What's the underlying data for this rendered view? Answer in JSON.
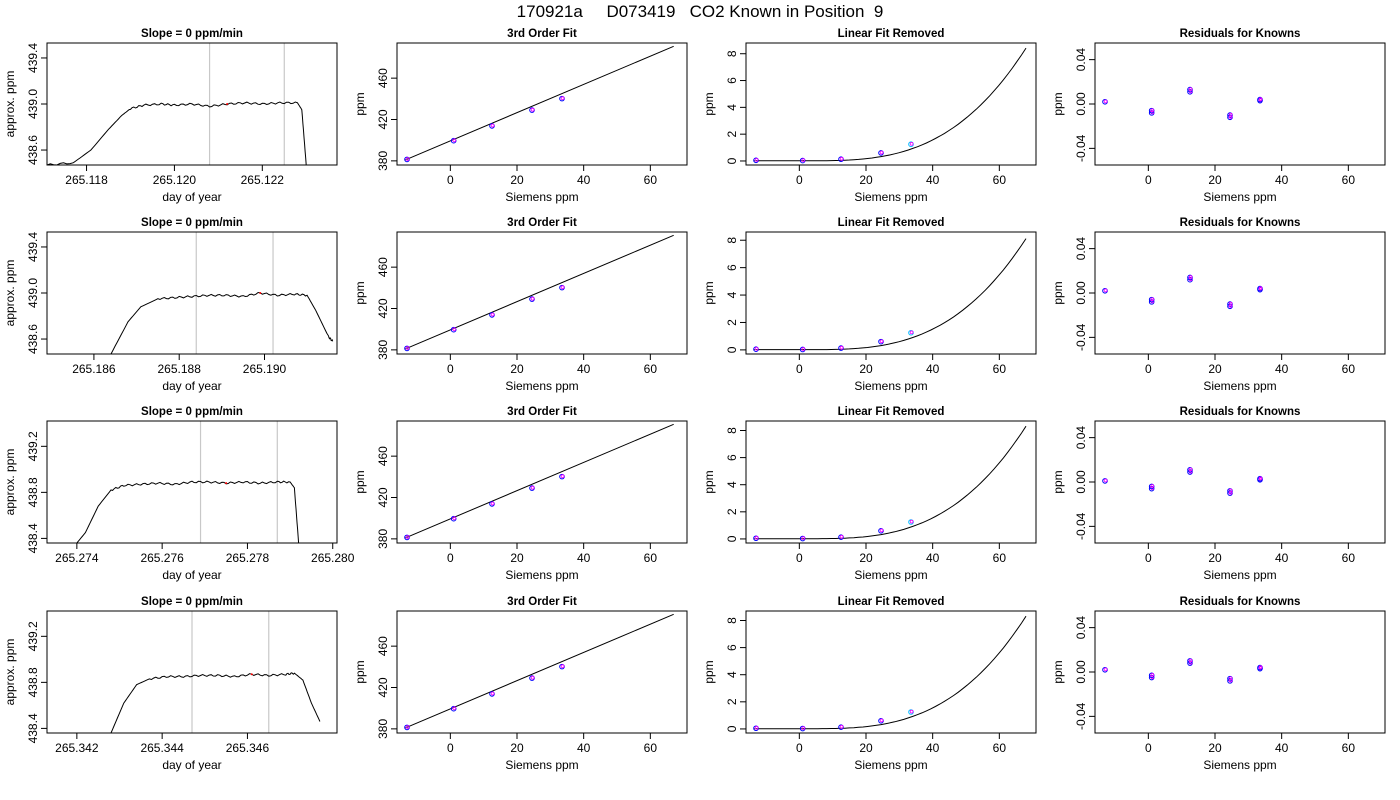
{
  "figure": {
    "title": "170921a     D073419   CO2 Known in Position  9",
    "colors": {
      "line": "#000000",
      "frame": "#000000",
      "vline": "#c8c8c8",
      "point_a": "#0000ff",
      "point_b": "#ff00ff",
      "point_c": "#00bfff",
      "trace_dot": "#ff0000"
    }
  },
  "chart_data": [
    {
      "type": "line",
      "title": "Slope =  0  ppm/min",
      "xlabel": "day of year",
      "ylabel": "approx. ppm",
      "xlim": [
        265.1171,
        265.1237
      ],
      "ylim": [
        438.47,
        439.53
      ],
      "xticks": [
        265.118,
        265.12,
        265.122
      ],
      "xtick_labels": [
        "265.118",
        "265.120",
        "265.122"
      ],
      "yticks": [
        438.6,
        439.0,
        439.4
      ],
      "ytick_labels": [
        "438.6",
        "439.0",
        "439.4"
      ],
      "vlines": [
        265.1208,
        265.1225
      ],
      "trace": [
        [
          265.1171,
          438.47
        ],
        [
          265.1177,
          438.49
        ],
        [
          265.1181,
          438.6
        ],
        [
          265.1185,
          438.78
        ],
        [
          265.1188,
          438.9
        ],
        [
          265.119,
          438.96
        ],
        [
          265.1193,
          438.99
        ],
        [
          265.1197,
          439.0
        ],
        [
          265.12,
          438.99
        ],
        [
          265.1204,
          439.0
        ],
        [
          265.1208,
          438.98
        ],
        [
          265.1212,
          439.0
        ],
        [
          265.1216,
          439.01
        ],
        [
          265.122,
          439.0
        ],
        [
          265.1224,
          439.01
        ],
        [
          265.1228,
          439.01
        ],
        [
          265.1229,
          438.95
        ],
        [
          265.123,
          438.47
        ]
      ]
    },
    {
      "type": "scatter",
      "title": "3rd Order Fit",
      "xlabel": "Siemens ppm",
      "ylabel": "ppm",
      "xlim": [
        -16,
        71
      ],
      "ylim": [
        376,
        494
      ],
      "xticks": [
        0,
        20,
        40,
        60
      ],
      "xtick_labels": [
        "0",
        "20",
        "40",
        "60"
      ],
      "yticks": [
        380,
        420,
        460
      ],
      "ytick_labels": [
        "380",
        "420",
        "460"
      ],
      "points": [
        [
          -13,
          381.4
        ],
        [
          1,
          399.5
        ],
        [
          12.5,
          413.8
        ],
        [
          24.5,
          429.1
        ],
        [
          33.5,
          440.2
        ]
      ],
      "curve": [
        [
          -13.5,
          380.9
        ],
        [
          67,
          490.8
        ]
      ]
    },
    {
      "type": "scatter",
      "title": "Linear Fit Removed",
      "xlabel": "Siemens ppm",
      "ylabel": "ppm",
      "xlim": [
        -16,
        71
      ],
      "ylim": [
        -0.3,
        8.8
      ],
      "xticks": [
        0,
        20,
        40,
        60
      ],
      "xtick_labels": [
        "0",
        "20",
        "40",
        "60"
      ],
      "yticks": [
        0,
        2,
        4,
        6,
        8
      ],
      "ytick_labels": [
        "0",
        "2",
        "4",
        "6",
        "8"
      ],
      "points": [
        [
          -13,
          0.05
        ],
        [
          1,
          0.03
        ],
        [
          12.5,
          0.13
        ],
        [
          24.5,
          0.6
        ],
        [
          33.5,
          1.25
        ]
      ],
      "curve_kind": "cubic",
      "curve_range": [
        -13.5,
        68
      ],
      "curve_end": 8.4
    },
    {
      "type": "scatter",
      "title": "Residuals for Knowns",
      "xlabel": "Siemens ppm",
      "ylabel": "ppm",
      "xlim": [
        -16,
        71
      ],
      "ylim": [
        -0.055,
        0.055
      ],
      "xticks": [
        0,
        20,
        40,
        60
      ],
      "xtick_labels": [
        "0",
        "20",
        "40",
        "60"
      ],
      "yticks": [
        -0.04,
        0.0,
        0.04
      ],
      "ytick_labels": [
        "-0.04",
        "0.00",
        "0.04"
      ],
      "points": [
        [
          -13,
          0.002
        ],
        [
          1,
          -0.008
        ],
        [
          1,
          -0.006
        ],
        [
          12.5,
          0.011
        ],
        [
          12.5,
          0.013
        ],
        [
          24.5,
          -0.01
        ],
        [
          24.5,
          -0.012
        ],
        [
          33.5,
          0.003
        ],
        [
          33.5,
          0.004
        ]
      ]
    },
    {
      "type": "line",
      "title": "Slope =  0  ppm/min",
      "xlabel": "day of year",
      "ylabel": "approx. ppm",
      "xlim": [
        265.1849,
        265.1917
      ],
      "ylim": [
        438.47,
        439.53
      ],
      "xticks": [
        265.186,
        265.188,
        265.19
      ],
      "xtick_labels": [
        "265.186",
        "265.188",
        "265.190"
      ],
      "yticks": [
        438.6,
        439.0,
        439.4
      ],
      "ytick_labels": [
        "438.6",
        "439.0",
        "439.4"
      ],
      "vlines": [
        265.1884,
        265.1902
      ],
      "trace": [
        [
          265.1864,
          438.47
        ],
        [
          265.1868,
          438.75
        ],
        [
          265.1871,
          438.88
        ],
        [
          265.1875,
          438.95
        ],
        [
          265.1879,
          438.96
        ],
        [
          265.1883,
          438.97
        ],
        [
          265.1887,
          438.98
        ],
        [
          265.1891,
          438.98
        ],
        [
          265.1895,
          438.97
        ],
        [
          265.1899,
          439.0
        ],
        [
          265.1903,
          438.98
        ],
        [
          265.1907,
          438.99
        ],
        [
          265.191,
          438.98
        ],
        [
          265.1912,
          438.85
        ],
        [
          265.1915,
          438.62
        ],
        [
          265.1916,
          438.58
        ]
      ]
    },
    {
      "type": "scatter",
      "title": "3rd Order Fit",
      "xlabel": "Siemens ppm",
      "ylabel": "ppm",
      "xlim": [
        -16,
        71
      ],
      "ylim": [
        376,
        494
      ],
      "xticks": [
        0,
        20,
        40,
        60
      ],
      "xtick_labels": [
        "0",
        "20",
        "40",
        "60"
      ],
      "yticks": [
        380,
        420,
        460
      ],
      "ytick_labels": [
        "380",
        "420",
        "460"
      ],
      "points": [
        [
          -13,
          381.4
        ],
        [
          1,
          399.5
        ],
        [
          12.5,
          413.8
        ],
        [
          24.5,
          429.1
        ],
        [
          33.5,
          440.2
        ]
      ],
      "curve": [
        [
          -13.5,
          380.9
        ],
        [
          67,
          490.8
        ]
      ]
    },
    {
      "type": "scatter",
      "title": "Linear Fit Removed",
      "xlabel": "Siemens ppm",
      "ylabel": "ppm",
      "xlim": [
        -16,
        71
      ],
      "ylim": [
        -0.3,
        8.6
      ],
      "xticks": [
        0,
        20,
        40,
        60
      ],
      "xtick_labels": [
        "0",
        "20",
        "40",
        "60"
      ],
      "yticks": [
        0,
        2,
        4,
        6,
        8
      ],
      "ytick_labels": [
        "0",
        "2",
        "4",
        "6",
        "8"
      ],
      "points": [
        [
          -13,
          0.05
        ],
        [
          1,
          0.03
        ],
        [
          12.5,
          0.13
        ],
        [
          24.5,
          0.6
        ],
        [
          33.5,
          1.25
        ]
      ],
      "curve_kind": "cubic",
      "curve_range": [
        -13.5,
        68
      ],
      "curve_end": 8.1
    },
    {
      "type": "scatter",
      "title": "Residuals for Knowns",
      "xlabel": "Siemens ppm",
      "ylabel": "ppm",
      "xlim": [
        -16,
        71
      ],
      "ylim": [
        -0.055,
        0.055
      ],
      "xticks": [
        0,
        20,
        40,
        60
      ],
      "xtick_labels": [
        "0",
        "20",
        "40",
        "60"
      ],
      "yticks": [
        -0.04,
        0.0,
        0.04
      ],
      "ytick_labels": [
        "-0.04",
        "0.00",
        "0.04"
      ],
      "points": [
        [
          -13,
          0.002
        ],
        [
          1,
          -0.008
        ],
        [
          1,
          -0.006
        ],
        [
          12.5,
          0.012
        ],
        [
          12.5,
          0.014
        ],
        [
          24.5,
          -0.01
        ],
        [
          24.5,
          -0.012
        ],
        [
          33.5,
          0.003
        ],
        [
          33.5,
          0.004
        ]
      ]
    },
    {
      "type": "line",
      "title": "Slope =  0  ppm/min",
      "xlabel": "day of year",
      "ylabel": "approx. ppm",
      "xlim": [
        265.2733,
        265.2801
      ],
      "ylim": [
        438.36,
        439.42
      ],
      "xticks": [
        265.274,
        265.276,
        265.278,
        265.28
      ],
      "xtick_labels": [
        "265.274",
        "265.276",
        "265.278",
        "265.280"
      ],
      "yticks": [
        438.4,
        438.8,
        439.2
      ],
      "ytick_labels": [
        "438.4",
        "438.8",
        "439.2"
      ],
      "vlines": [
        265.2769,
        265.2787
      ],
      "trace": [
        [
          265.274,
          438.36
        ],
        [
          265.2742,
          438.45
        ],
        [
          265.2745,
          438.68
        ],
        [
          265.2748,
          438.82
        ],
        [
          265.2751,
          438.86
        ],
        [
          265.2755,
          438.87
        ],
        [
          265.2759,
          438.88
        ],
        [
          265.2763,
          438.87
        ],
        [
          265.2767,
          438.89
        ],
        [
          265.2771,
          438.89
        ],
        [
          265.2775,
          438.88
        ],
        [
          265.2779,
          438.89
        ],
        [
          265.2783,
          438.88
        ],
        [
          265.2787,
          438.89
        ],
        [
          265.279,
          438.89
        ],
        [
          265.2791,
          438.84
        ],
        [
          265.2792,
          438.36
        ]
      ]
    },
    {
      "type": "scatter",
      "title": "3rd Order Fit",
      "xlabel": "Siemens ppm",
      "ylabel": "ppm",
      "xlim": [
        -16,
        71
      ],
      "ylim": [
        376,
        494
      ],
      "xticks": [
        0,
        20,
        40,
        60
      ],
      "xtick_labels": [
        "0",
        "20",
        "40",
        "60"
      ],
      "yticks": [
        380,
        420,
        460
      ],
      "ytick_labels": [
        "380",
        "420",
        "460"
      ],
      "points": [
        [
          -13,
          381.4
        ],
        [
          1,
          399.5
        ],
        [
          12.5,
          413.8
        ],
        [
          24.5,
          429.1
        ],
        [
          33.5,
          440.2
        ]
      ],
      "curve": [
        [
          -13.5,
          380.9
        ],
        [
          67,
          490.8
        ]
      ]
    },
    {
      "type": "scatter",
      "title": "Linear Fit Removed",
      "xlabel": "Siemens ppm",
      "ylabel": "ppm",
      "xlim": [
        -16,
        71
      ],
      "ylim": [
        -0.3,
        8.7
      ],
      "xticks": [
        0,
        20,
        40,
        60
      ],
      "xtick_labels": [
        "0",
        "20",
        "40",
        "60"
      ],
      "yticks": [
        0,
        2,
        4,
        6,
        8
      ],
      "ytick_labels": [
        "0",
        "2",
        "4",
        "6",
        "8"
      ],
      "points": [
        [
          -13,
          0.05
        ],
        [
          1,
          0.03
        ],
        [
          12.5,
          0.13
        ],
        [
          24.5,
          0.6
        ],
        [
          33.5,
          1.25
        ]
      ],
      "curve_kind": "cubic",
      "curve_range": [
        -13.5,
        68
      ],
      "curve_end": 8.3
    },
    {
      "type": "scatter",
      "title": "Residuals for Knowns",
      "xlabel": "Siemens ppm",
      "ylabel": "ppm",
      "xlim": [
        -16,
        71
      ],
      "ylim": [
        -0.055,
        0.055
      ],
      "xticks": [
        0,
        20,
        40,
        60
      ],
      "xtick_labels": [
        "0",
        "20",
        "40",
        "60"
      ],
      "yticks": [
        -0.04,
        0.0,
        0.04
      ],
      "ytick_labels": [
        "-0.04",
        "0.00",
        "0.04"
      ],
      "points": [
        [
          -13,
          0.001
        ],
        [
          1,
          -0.006
        ],
        [
          1,
          -0.004
        ],
        [
          12.5,
          0.009
        ],
        [
          12.5,
          0.011
        ],
        [
          24.5,
          -0.008
        ],
        [
          24.5,
          -0.01
        ],
        [
          33.5,
          0.002
        ],
        [
          33.5,
          0.003
        ]
      ]
    },
    {
      "type": "line",
      "title": "Slope =  0  ppm/min",
      "xlabel": "day of year",
      "ylabel": "approx. ppm",
      "xlim": [
        265.3413,
        265.3481
      ],
      "ylim": [
        438.36,
        439.42
      ],
      "xticks": [
        265.342,
        265.344,
        265.346
      ],
      "xtick_labels": [
        "265.342",
        "265.344",
        "265.346"
      ],
      "yticks": [
        438.4,
        438.8,
        439.2
      ],
      "ytick_labels": [
        "438.4",
        "438.8",
        "439.2"
      ],
      "vlines": [
        265.3447,
        265.3465
      ],
      "trace": [
        [
          265.3428,
          438.36
        ],
        [
          265.3431,
          438.62
        ],
        [
          265.3434,
          438.78
        ],
        [
          265.3437,
          438.83
        ],
        [
          265.3441,
          438.85
        ],
        [
          265.3445,
          438.85
        ],
        [
          265.3449,
          438.86
        ],
        [
          265.3453,
          438.86
        ],
        [
          265.3457,
          438.85
        ],
        [
          265.3461,
          438.87
        ],
        [
          265.3465,
          438.86
        ],
        [
          265.3469,
          438.87
        ],
        [
          265.3471,
          438.88
        ],
        [
          265.3473,
          438.82
        ],
        [
          265.3475,
          438.62
        ],
        [
          265.3477,
          438.46
        ]
      ]
    },
    {
      "type": "scatter",
      "title": "3rd Order Fit",
      "xlabel": "Siemens ppm",
      "ylabel": "ppm",
      "xlim": [
        -16,
        71
      ],
      "ylim": [
        376,
        494
      ],
      "xticks": [
        0,
        20,
        40,
        60
      ],
      "xtick_labels": [
        "0",
        "20",
        "40",
        "60"
      ],
      "yticks": [
        380,
        420,
        460
      ],
      "ytick_labels": [
        "380",
        "420",
        "460"
      ],
      "points": [
        [
          -13,
          381.4
        ],
        [
          1,
          399.5
        ],
        [
          12.5,
          413.8
        ],
        [
          24.5,
          429.1
        ],
        [
          33.5,
          440.2
        ]
      ],
      "curve": [
        [
          -13.5,
          380.9
        ],
        [
          67,
          490.8
        ]
      ]
    },
    {
      "type": "scatter",
      "title": "Linear Fit Removed",
      "xlabel": "Siemens ppm",
      "ylabel": "ppm",
      "xlim": [
        -16,
        71
      ],
      "ylim": [
        -0.3,
        8.7
      ],
      "xticks": [
        0,
        20,
        40,
        60
      ],
      "xtick_labels": [
        "0",
        "20",
        "40",
        "60"
      ],
      "yticks": [
        0,
        2,
        4,
        6,
        8
      ],
      "ytick_labels": [
        "0",
        "2",
        "4",
        "6",
        "8"
      ],
      "points": [
        [
          -13,
          0.05
        ],
        [
          1,
          0.03
        ],
        [
          12.5,
          0.13
        ],
        [
          24.5,
          0.6
        ],
        [
          33.5,
          1.25
        ]
      ],
      "curve_kind": "cubic",
      "curve_range": [
        -13.5,
        68
      ],
      "curve_end": 8.3
    },
    {
      "type": "scatter",
      "title": "Residuals for Knowns",
      "xlabel": "Siemens ppm",
      "ylabel": "ppm",
      "xlim": [
        -16,
        71
      ],
      "ylim": [
        -0.055,
        0.055
      ],
      "xticks": [
        0,
        20,
        40,
        60
      ],
      "xtick_labels": [
        "0",
        "20",
        "40",
        "60"
      ],
      "yticks": [
        -0.04,
        0.0,
        0.04
      ],
      "ytick_labels": [
        "-0.04",
        "0.00",
        "0.04"
      ],
      "points": [
        [
          -13,
          0.002
        ],
        [
          1,
          -0.005
        ],
        [
          1,
          -0.003
        ],
        [
          12.5,
          0.008
        ],
        [
          12.5,
          0.01
        ],
        [
          24.5,
          -0.006
        ],
        [
          24.5,
          -0.008
        ],
        [
          33.5,
          0.003
        ],
        [
          33.5,
          0.004
        ]
      ]
    }
  ]
}
